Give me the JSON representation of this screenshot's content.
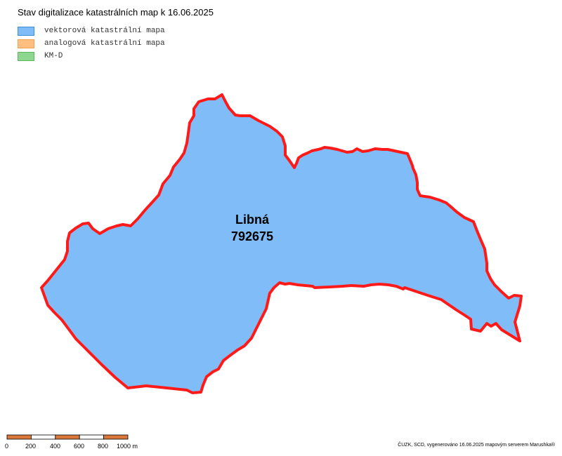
{
  "map": {
    "title": "Stav digitalizace katastrálních map k 16.06.2025"
  },
  "legend": {
    "items": [
      {
        "label": "vektorová katastrální mapa",
        "fill": "#80bdf8",
        "stroke": "#3a8fd8"
      },
      {
        "label": "analogová katastrální mapa",
        "fill": "#ffbf80",
        "stroke": "#f0a050"
      },
      {
        "label": "KM-D",
        "fill": "#8fd690",
        "stroke": "#5cb85c"
      }
    ]
  },
  "region": {
    "name": "Libná",
    "code": "792675",
    "fill": "#80bdf8",
    "border": "#ff1a1a"
  },
  "scale_bar": {
    "labels": [
      "0",
      "200",
      "400",
      "600",
      "800",
      "1000 m"
    ],
    "color_dark": "#d9783a",
    "color_light": "#ffffff"
  },
  "credit": "ČUZK, SCD, vygenerováno 16.06.2025 mapovým serverem Marushka®"
}
